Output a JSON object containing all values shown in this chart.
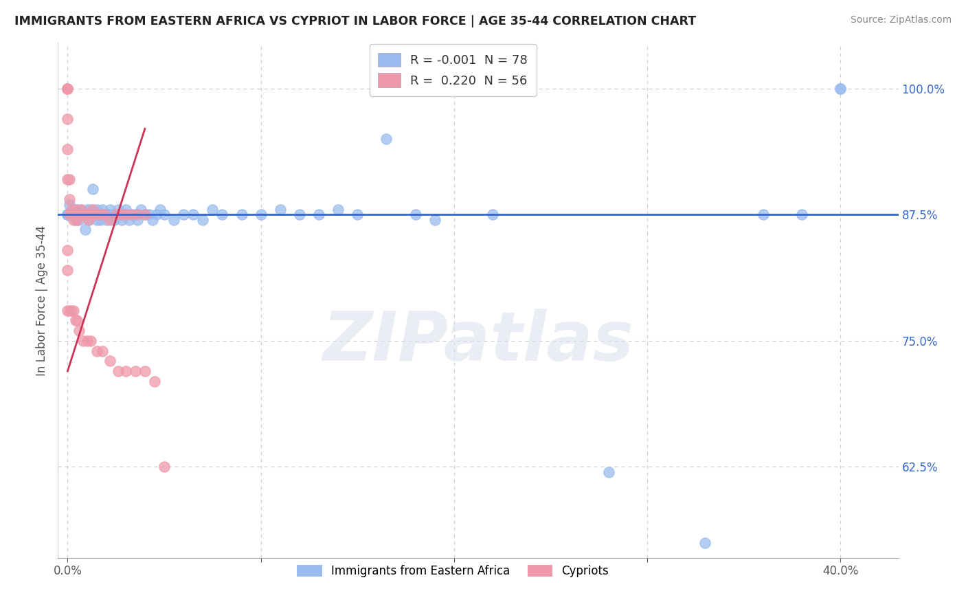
{
  "title": "IMMIGRANTS FROM EASTERN AFRICA VS CYPRIOT IN LABOR FORCE | AGE 35-44 CORRELATION CHART",
  "source": "Source: ZipAtlas.com",
  "ylabel": "In Labor Force | Age 35-44",
  "watermark": "ZIPatlas",
  "xlim": [
    -0.005,
    0.43
  ],
  "ylim": [
    0.535,
    1.045
  ],
  "xtick_positions": [
    0.0,
    0.1,
    0.2,
    0.3,
    0.4
  ],
  "xticklabels": [
    "0.0%",
    "",
    "",
    "",
    "40.0%"
  ],
  "ytick_positions": [
    0.625,
    0.75,
    0.875,
    1.0
  ],
  "ytick_labels": [
    "62.5%",
    "75.0%",
    "87.5%",
    "100.0%"
  ],
  "hline_y": 0.875,
  "hline_color": "#3366cc",
  "blue_color": "#99bbee",
  "pink_color": "#ee99aa",
  "pink_line_color": "#cc3355",
  "background_color": "#ffffff",
  "grid_color": "#cccccc",
  "blue_x": [
    0.001,
    0.001,
    0.002,
    0.003,
    0.003,
    0.004,
    0.004,
    0.005,
    0.005,
    0.006,
    0.006,
    0.007,
    0.008,
    0.009,
    0.009,
    0.01,
    0.01,
    0.011,
    0.012,
    0.013,
    0.013,
    0.014,
    0.015,
    0.015,
    0.016,
    0.017,
    0.018,
    0.019,
    0.02,
    0.02,
    0.021,
    0.022,
    0.023,
    0.024,
    0.025,
    0.026,
    0.027,
    0.028,
    0.029,
    0.03,
    0.032,
    0.033,
    0.035,
    0.036,
    0.038,
    0.04,
    0.042,
    0.044,
    0.046,
    0.048,
    0.05,
    0.055,
    0.06,
    0.065,
    0.07,
    0.075,
    0.08,
    0.09,
    0.1,
    0.11,
    0.12,
    0.13,
    0.14,
    0.15,
    0.165,
    0.18,
    0.19,
    0.22,
    0.28,
    0.33,
    0.36,
    0.38,
    0.4,
    0.4,
    0.0,
    0.0,
    0.0,
    0.0
  ],
  "blue_y": [
    0.875,
    0.885,
    0.875,
    0.875,
    0.88,
    0.875,
    0.87,
    0.875,
    0.88,
    0.875,
    0.87,
    0.88,
    0.875,
    0.875,
    0.86,
    0.88,
    0.875,
    0.87,
    0.88,
    0.875,
    0.9,
    0.875,
    0.87,
    0.88,
    0.875,
    0.87,
    0.88,
    0.875,
    0.875,
    0.87,
    0.875,
    0.88,
    0.875,
    0.87,
    0.875,
    0.88,
    0.875,
    0.87,
    0.875,
    0.88,
    0.87,
    0.875,
    0.875,
    0.87,
    0.88,
    0.875,
    0.875,
    0.87,
    0.875,
    0.88,
    0.875,
    0.87,
    0.875,
    0.875,
    0.87,
    0.88,
    0.875,
    0.875,
    0.875,
    0.88,
    0.875,
    0.875,
    0.88,
    0.875,
    0.95,
    0.875,
    0.87,
    0.875,
    0.62,
    0.55,
    0.875,
    0.875,
    1.0,
    1.0,
    0.875,
    0.875,
    0.875,
    0.875
  ],
  "pink_x": [
    0.0,
    0.0,
    0.0,
    0.0,
    0.0,
    0.0,
    0.001,
    0.001,
    0.001,
    0.002,
    0.002,
    0.003,
    0.003,
    0.004,
    0.004,
    0.005,
    0.005,
    0.006,
    0.007,
    0.008,
    0.009,
    0.01,
    0.011,
    0.012,
    0.013,
    0.015,
    0.017,
    0.019,
    0.022,
    0.025,
    0.028,
    0.03,
    0.033,
    0.036,
    0.04,
    0.0,
    0.0,
    0.0,
    0.001,
    0.002,
    0.003,
    0.004,
    0.005,
    0.006,
    0.008,
    0.01,
    0.012,
    0.015,
    0.018,
    0.022,
    0.026,
    0.03,
    0.035,
    0.04,
    0.045,
    0.05
  ],
  "pink_y": [
    1.0,
    1.0,
    1.0,
    0.97,
    0.94,
    0.91,
    0.91,
    0.89,
    0.875,
    0.88,
    0.875,
    0.875,
    0.87,
    0.875,
    0.88,
    0.875,
    0.87,
    0.875,
    0.88,
    0.875,
    0.875,
    0.875,
    0.87,
    0.875,
    0.88,
    0.875,
    0.875,
    0.875,
    0.87,
    0.875,
    0.875,
    0.875,
    0.875,
    0.875,
    0.875,
    0.84,
    0.82,
    0.78,
    0.78,
    0.78,
    0.78,
    0.77,
    0.77,
    0.76,
    0.75,
    0.75,
    0.75,
    0.74,
    0.74,
    0.73,
    0.72,
    0.72,
    0.72,
    0.72,
    0.71,
    0.625
  ],
  "pink_trend_x": [
    0.0,
    0.04
  ],
  "pink_trend_y": [
    0.72,
    0.96
  ],
  "legend1_label": "R = -0.001  N = 78",
  "legend2_label": "R =  0.220  N = 56",
  "bottom_legend1": "Immigrants from Eastern Africa",
  "bottom_legend2": "Cypriots"
}
